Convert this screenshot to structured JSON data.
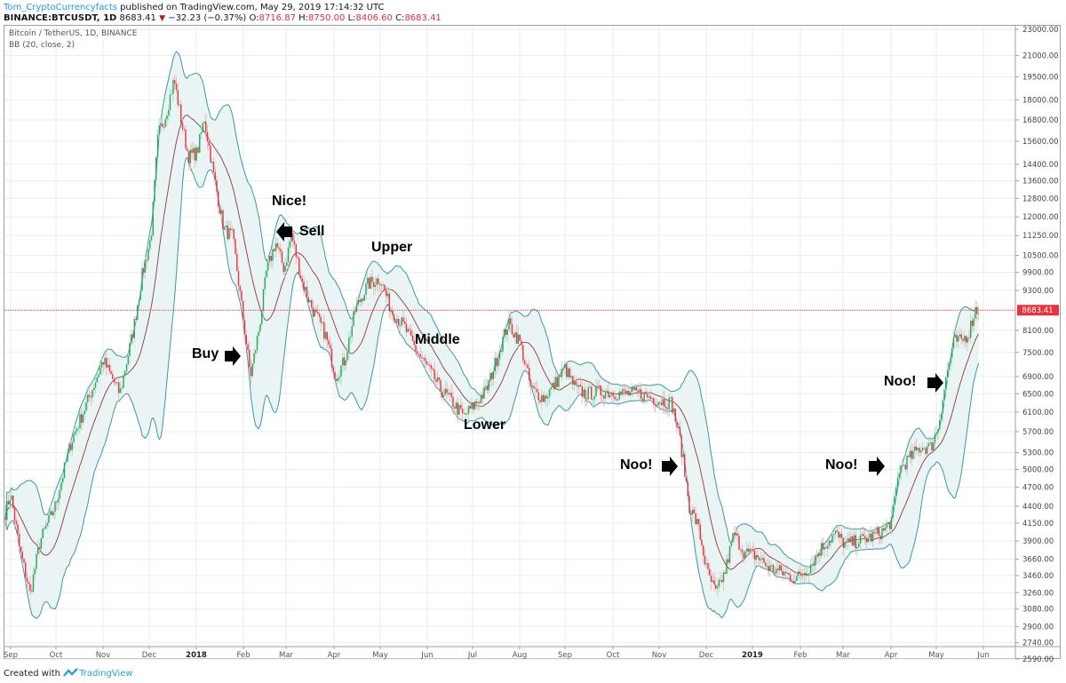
{
  "header": {
    "author": "Tom_CryptoCurrencyfacts",
    "published_text": " published on TradingView.com, May 29, 2019 17:14:32 UTC",
    "symbol": "BINANCE:BTCUSDT, 1D",
    "last": "8683.41",
    "change": "−32.23 (−0.37%)",
    "open_label": "O:",
    "open": "8716.87",
    "high_label": "H:",
    "high": "8750.00",
    "low_label": "L:",
    "low": "8406.60",
    "close_label": "C:",
    "close": "8683.41"
  },
  "legend": {
    "title": "Bitcoin / TetherUS, 1D, BINANCE",
    "indicator": "BB (20, close, 2)"
  },
  "footer": {
    "created_with": "Created with",
    "brand": "TradingView"
  },
  "colors": {
    "up": "#26a65b",
    "down": "#e8323f",
    "band": "#3c9a9a",
    "band_fill": "#eaf4f5",
    "basis": "#8b3a3a",
    "price_line": "#e8323f",
    "grid": "#e6eef2"
  },
  "chart_data": {
    "type": "candlestick",
    "title": "Bitcoin / TetherUS, 1D, BINANCE",
    "indicator": "Bollinger Bands (20, close, 2)",
    "symbol": "BINANCE:BTCUSDT",
    "interval": "1D",
    "ohlc_last": {
      "open": 8716.87,
      "high": 8750.0,
      "low": 8406.6,
      "close": 8683.41,
      "change": -32.23,
      "change_pct": -0.37
    },
    "current_price_label": "8683.41",
    "y_scale": "log",
    "y_ticks": [
      23000,
      21000,
      19500,
      18000,
      16800,
      15600,
      14400,
      13600,
      12800,
      12000,
      11250,
      10500,
      9900,
      9300,
      8100,
      7500,
      6900,
      6500,
      6100,
      5700,
      5300,
      5000,
      4700,
      4400,
      4150,
      3900,
      3660,
      3460,
      3260,
      3080,
      2900,
      2740,
      2590
    ],
    "y_tick_labels": [
      "23000.00",
      "21000.00",
      "19500.00",
      "18000.00",
      "16800.00",
      "15600.00",
      "14400.00",
      "13600.00",
      "12800.00",
      "12000.00",
      "11250.00",
      "10500.00",
      "9900.00",
      "9300.00",
      "8100.00",
      "7500.00",
      "6900.00",
      "6500.00",
      "6100.00",
      "5700.00",
      "5300.00",
      "5000.00",
      "4700.00",
      "4400.00",
      "4150.00",
      "3900.00",
      "3660.00",
      "3460.00",
      "3260.00",
      "3080.00",
      "2900.00",
      "2740.00",
      "2590.00"
    ],
    "x_tick_labels": [
      "Sep",
      "Oct",
      "Nov",
      "Dec",
      "2018",
      "Feb",
      "Mar",
      "Apr",
      "May",
      "Jun",
      "Jul",
      "Aug",
      "Sep",
      "Oct",
      "Nov",
      "Dec",
      "2019",
      "Feb",
      "Mar",
      "Apr",
      "May",
      "Jun"
    ],
    "approx_monthly_close": {
      "x": [
        "2017-09",
        "2017-10",
        "2017-11",
        "2017-12",
        "2018-01",
        "2018-02",
        "2018-03",
        "2018-04",
        "2018-05",
        "2018-06",
        "2018-07",
        "2018-08",
        "2018-09",
        "2018-10",
        "2018-11",
        "2018-12",
        "2019-01",
        "2019-02",
        "2019-03",
        "2019-04",
        "2019-05"
      ],
      "close": [
        4300,
        6400,
        9900,
        13800,
        10200,
        10300,
        6900,
        9200,
        7500,
        6300,
        7700,
        7000,
        6600,
        6300,
        4000,
        3750,
        3450,
        3800,
        4100,
        5300,
        8683
      ]
    },
    "key_points": [
      {
        "label": "ATH",
        "date": "2017-12-17",
        "price": 19500
      },
      {
        "label": "Feb-2018 low",
        "date": "2018-02-06",
        "price": 6000
      },
      {
        "label": "Dec-2018 low",
        "date": "2018-12-15",
        "price": 3200
      },
      {
        "label": "Last",
        "date": "2019-05-29",
        "price": 8683.41
      }
    ],
    "annotations": [
      {
        "text": "Nice!",
        "near": "2018-02-20"
      },
      {
        "text": "Sell",
        "near": "2018-03-05",
        "arrow": "left"
      },
      {
        "text": "Buy",
        "near": "2018-02-06",
        "arrow": "right"
      },
      {
        "text": "Upper",
        "near": "2018-05-05"
      },
      {
        "text": "Middle",
        "near": "2018-06-15"
      },
      {
        "text": "Lower",
        "near": "2018-07-10"
      },
      {
        "text": "Noo!",
        "near": "2018-11-15",
        "arrow": "right"
      },
      {
        "text": "Noo!",
        "near": "2019-04-01",
        "arrow": "right"
      },
      {
        "text": "Noo!",
        "near": "2019-05-05",
        "arrow": "right"
      }
    ],
    "grid": true,
    "legend_position": "top-left"
  },
  "annotations": {
    "nice": "Nice!",
    "sell": "Sell",
    "buy": "Buy",
    "upper": "Upper",
    "middle": "Middle",
    "lower": "Lower",
    "noo1": "Noo!",
    "noo2": "Noo!",
    "noo3": "Noo!"
  }
}
